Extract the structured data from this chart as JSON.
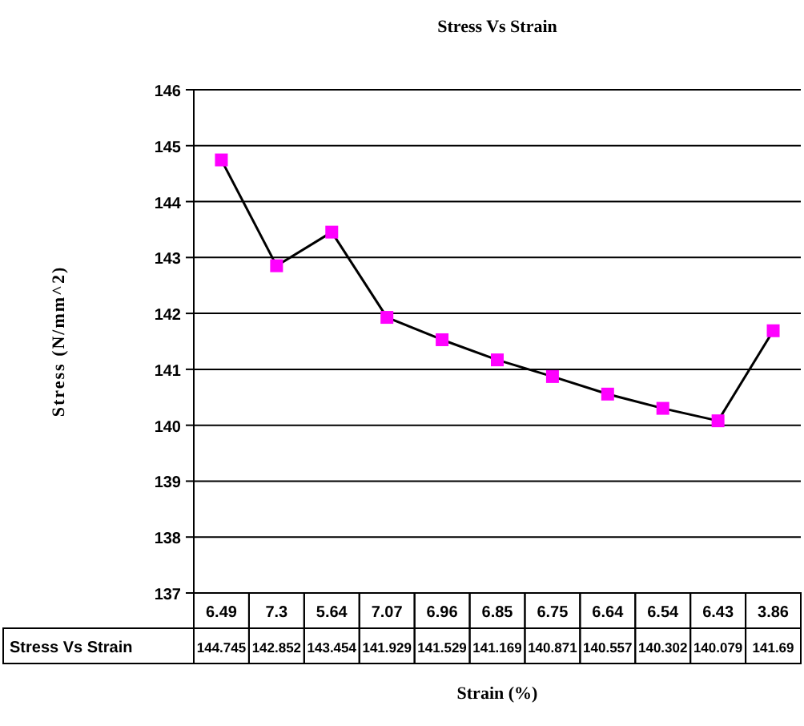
{
  "chart_data": {
    "type": "line",
    "title": "Stress Vs Strain",
    "xlabel": "Strain (%)",
    "ylabel": "Stress (N/mm^2)",
    "categories": [
      "6.49",
      "7.3",
      "5.64",
      "7.07",
      "6.96",
      "6.85",
      "6.75",
      "6.64",
      "6.54",
      "6.43",
      "3.86"
    ],
    "series": [
      {
        "name": "Stress Vs Strain",
        "color": "#ff00ff",
        "values": [
          144.745,
          142.852,
          143.454,
          141.929,
          141.529,
          141.169,
          140.871,
          140.557,
          140.302,
          140.079,
          141.69
        ]
      }
    ],
    "ylim": [
      137,
      146
    ],
    "yticks": [
      137,
      138,
      139,
      140,
      141,
      142,
      143,
      144,
      145,
      146
    ],
    "grid": "y",
    "marker": "square",
    "line_style": "solid",
    "data_labels": true
  }
}
